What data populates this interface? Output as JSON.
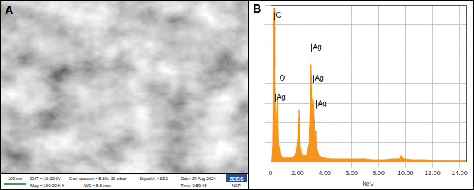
{
  "sem_image": {
    "panel_label": "A",
    "scale_bar": "100 nm",
    "info_rows": [
      [
        "EHT = 15.00 kV",
        "Gun Vacuum = 5.66e-10 mbar",
        "Signal A = SE2",
        "Date: 29 Aug 2024"
      ],
      [
        "Mag = 100.00 K X",
        "WD = 8.5 mm",
        "Time: 9:59:48"
      ]
    ],
    "logo": "ZEISS",
    "logo_sub": "NCP"
  },
  "chart_data": {
    "panel_label": "B",
    "type": "area",
    "x_label": "keV",
    "x": [
      0,
      0.1,
      0.15,
      0.2,
      0.24,
      0.27,
      0.3,
      0.34,
      0.38,
      0.42,
      0.46,
      0.5,
      0.52,
      0.55,
      0.6,
      0.7,
      0.8,
      0.9,
      1.0,
      1.2,
      1.4,
      1.6,
      1.8,
      1.9,
      2.0,
      2.05,
      2.1,
      2.15,
      2.2,
      2.3,
      2.5,
      2.7,
      2.85,
      2.92,
      2.98,
      3.04,
      3.1,
      3.15,
      3.2,
      3.26,
      3.32,
      3.36,
      3.42,
      3.5,
      3.6,
      3.8,
      4.0,
      4.5,
      5.0,
      5.5,
      6.0,
      6.5,
      7.0,
      7.5,
      8.0,
      8.5,
      9.0,
      9.5,
      9.7,
      9.9,
      10.5,
      11,
      11.5,
      12,
      12.5,
      13,
      13.5,
      14,
      14.5
    ],
    "values": [
      0,
      2,
      10,
      45,
      90,
      98,
      60,
      25,
      22,
      18,
      30,
      40,
      42,
      30,
      12,
      6,
      4,
      3,
      3,
      3,
      3,
      3,
      4,
      6,
      15,
      28,
      33,
      25,
      10,
      5,
      4,
      5,
      12,
      35,
      62,
      48,
      38,
      40,
      30,
      18,
      20,
      15,
      10,
      6,
      4,
      3,
      3,
      2,
      2,
      2,
      2,
      2,
      2,
      1.5,
      1.5,
      1.5,
      2,
      2,
      4,
      2,
      1.5,
      1.5,
      1.5,
      1,
      1,
      1,
      1,
      1,
      1
    ],
    "color": "#f7941d",
    "xlim": [
      0,
      14.5
    ],
    "xticks": [
      0,
      {
        "value": 2,
        "label": "2.00"
      },
      {
        "value": 4,
        "label": "4.00"
      },
      {
        "value": 6,
        "label": "6.00"
      },
      {
        "value": 8,
        "label": "8.00"
      },
      {
        "value": 10,
        "label": "10.00"
      },
      {
        "value": 12,
        "label": "12.00"
      },
      {
        "value": 14,
        "label": "14.00"
      }
    ],
    "ylim": [
      0,
      100
    ],
    "yticks": [
      0,
      12.5,
      25,
      37.5,
      50,
      62.5,
      75,
      87.5,
      100
    ],
    "grid": true,
    "tick_labels": "x",
    "annotations": [
      {
        "text": "C",
        "x": 0.27,
        "y": 90
      },
      {
        "text": "O",
        "x": 0.52,
        "y": 50
      },
      {
        "text": "Ag",
        "x": 0.3,
        "y": 38
      },
      {
        "text": "Ag",
        "x": 2.98,
        "y": 70
      },
      {
        "text": "Ag",
        "x": 3.15,
        "y": 50
      },
      {
        "text": "Ag",
        "x": 3.35,
        "y": 34
      }
    ]
  }
}
